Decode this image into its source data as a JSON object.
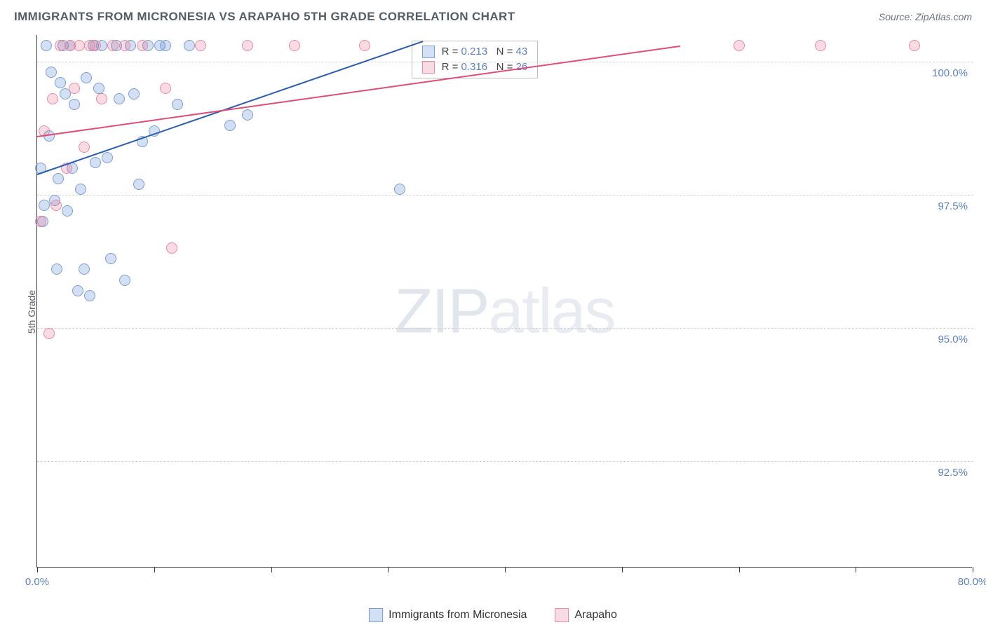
{
  "title": "IMMIGRANTS FROM MICRONESIA VS ARAPAHO 5TH GRADE CORRELATION CHART",
  "source": "Source: ZipAtlas.com",
  "y_axis_label": "5th Grade",
  "watermark_zip": "ZIP",
  "watermark_atlas": "atlas",
  "chart": {
    "type": "scatter",
    "xlim": [
      0,
      80
    ],
    "ylim": [
      90.5,
      100.5
    ],
    "x_ticks": [
      0,
      10,
      20,
      30,
      40,
      50,
      60,
      70,
      80
    ],
    "x_tick_labels": {
      "0": "0.0%",
      "80": "80.0%"
    },
    "y_ticks": [
      92.5,
      95.0,
      97.5,
      100.0
    ],
    "y_tick_labels": [
      "92.5%",
      "95.0%",
      "97.5%",
      "100.0%"
    ],
    "grid_color": "#d0d0d0",
    "background_color": "#ffffff",
    "axis_color": "#3a3a3a",
    "tick_label_color": "#5b7fc7",
    "marker_size": 16,
    "series": [
      {
        "name": "Immigrants from Micronesia",
        "fill": "rgba(96,140,209,0.28)",
        "stroke": "#7a9fd4",
        "trend_color": "#2a5db0",
        "r": "0.213",
        "n": "43",
        "trend": {
          "x1": 0,
          "y1": 97.9,
          "x2": 33,
          "y2": 100.4
        },
        "points": [
          [
            0.3,
            98.0
          ],
          [
            0.5,
            97.0
          ],
          [
            0.6,
            97.3
          ],
          [
            0.8,
            100.3
          ],
          [
            1.0,
            98.6
          ],
          [
            1.2,
            99.8
          ],
          [
            1.5,
            97.4
          ],
          [
            1.7,
            96.1
          ],
          [
            1.8,
            97.8
          ],
          [
            2.0,
            99.6
          ],
          [
            2.2,
            100.3
          ],
          [
            2.4,
            99.4
          ],
          [
            2.6,
            97.2
          ],
          [
            2.8,
            100.3
          ],
          [
            3.0,
            98.0
          ],
          [
            3.2,
            99.2
          ],
          [
            3.5,
            95.7
          ],
          [
            3.7,
            97.6
          ],
          [
            4.0,
            96.1
          ],
          [
            4.2,
            99.7
          ],
          [
            4.5,
            95.6
          ],
          [
            4.8,
            100.3
          ],
          [
            5.0,
            98.1
          ],
          [
            5.3,
            99.5
          ],
          [
            5.5,
            100.3
          ],
          [
            6.0,
            98.2
          ],
          [
            6.3,
            96.3
          ],
          [
            6.8,
            100.3
          ],
          [
            7.0,
            99.3
          ],
          [
            7.5,
            95.9
          ],
          [
            8.0,
            100.3
          ],
          [
            8.3,
            99.4
          ],
          [
            8.7,
            97.7
          ],
          [
            9.0,
            98.5
          ],
          [
            9.5,
            100.3
          ],
          [
            10.0,
            98.7
          ],
          [
            10.5,
            100.3
          ],
          [
            11.0,
            100.3
          ],
          [
            12.0,
            99.2
          ],
          [
            13.0,
            100.3
          ],
          [
            16.5,
            98.8
          ],
          [
            18.0,
            99.0
          ],
          [
            31.0,
            97.6
          ]
        ]
      },
      {
        "name": "Arapaho",
        "fill": "rgba(231,110,140,0.24)",
        "stroke": "#e88aa3",
        "trend_color": "#e14d77",
        "r": "0.316",
        "n": "26",
        "trend": {
          "x1": 0,
          "y1": 98.6,
          "x2": 55,
          "y2": 100.3
        },
        "points": [
          [
            0.3,
            97.0
          ],
          [
            0.6,
            98.7
          ],
          [
            1.0,
            94.9
          ],
          [
            1.3,
            99.3
          ],
          [
            1.6,
            97.3
          ],
          [
            2.0,
            100.3
          ],
          [
            2.5,
            98.0
          ],
          [
            2.8,
            100.3
          ],
          [
            3.2,
            99.5
          ],
          [
            3.6,
            100.3
          ],
          [
            4.0,
            98.4
          ],
          [
            4.5,
            100.3
          ],
          [
            5.0,
            100.3
          ],
          [
            5.5,
            99.3
          ],
          [
            6.5,
            100.3
          ],
          [
            7.5,
            100.3
          ],
          [
            9.0,
            100.3
          ],
          [
            11.0,
            99.5
          ],
          [
            11.5,
            96.5
          ],
          [
            14.0,
            100.3
          ],
          [
            18.0,
            100.3
          ],
          [
            22.0,
            100.3
          ],
          [
            28.0,
            100.3
          ],
          [
            60.0,
            100.3
          ],
          [
            67.0,
            100.3
          ],
          [
            75.0,
            100.3
          ]
        ]
      }
    ]
  },
  "legend": {
    "series1_label": "Immigrants from Micronesia",
    "series2_label": "Arapaho"
  },
  "stats_box": {
    "r_label": "R =",
    "n_label": "N ="
  }
}
